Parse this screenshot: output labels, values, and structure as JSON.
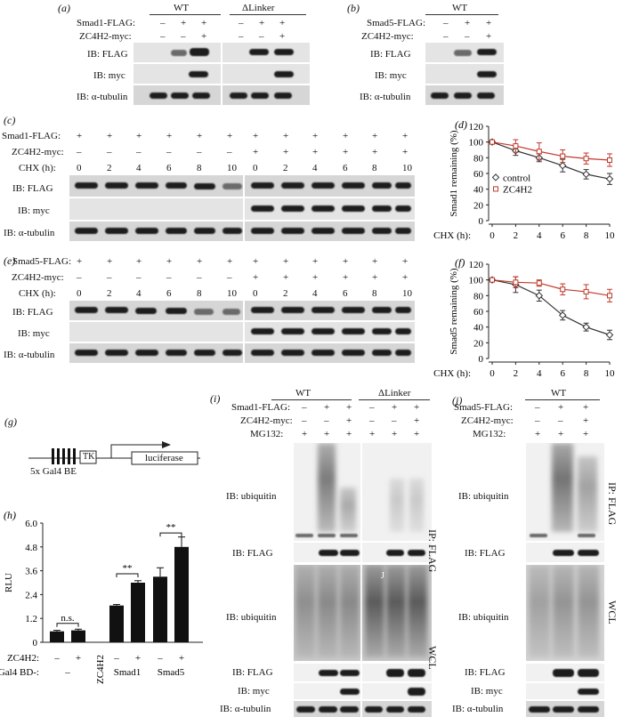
{
  "panel_a": {
    "letter": "(a)",
    "groups": [
      "WT",
      "ΔLinker"
    ],
    "rows": [
      {
        "label": "Smad1-FLAG:",
        "signs": [
          "–",
          "+",
          "+",
          "–",
          "+",
          "+"
        ]
      },
      {
        "label": "ZC4H2-myc:",
        "signs": [
          "–",
          "–",
          "+",
          "–",
          "–",
          "+"
        ]
      }
    ],
    "blots": [
      "IB: FLAG",
      "IB: myc",
      "IB: α-tubulin"
    ]
  },
  "panel_b": {
    "letter": "(b)",
    "groups": [
      "WT"
    ],
    "rows": [
      {
        "label": "Smad5-FLAG:",
        "signs": [
          "–",
          "+",
          "+"
        ]
      },
      {
        "label": "ZC4H2-myc:",
        "signs": [
          "–",
          "–",
          "+"
        ]
      }
    ],
    "blots": [
      "IB: FLAG",
      "IB: myc",
      "IB: α-tubulin"
    ]
  },
  "panel_c": {
    "letter": "(c)",
    "rows": [
      {
        "label": "Smad1-FLAG:",
        "signs": [
          "+",
          "+",
          "+",
          "+",
          "+",
          "+",
          "+",
          "+",
          "+",
          "+",
          "+",
          "+"
        ]
      },
      {
        "label": "ZC4H2-myc:",
        "signs": [
          "–",
          "–",
          "–",
          "–",
          "–",
          "–",
          "+",
          "+",
          "+",
          "+",
          "+",
          "+"
        ]
      },
      {
        "label": "CHX (h):",
        "signs": [
          "0",
          "2",
          "4",
          "6",
          "8",
          "10",
          "0",
          "2",
          "4",
          "6",
          "8",
          "10"
        ]
      }
    ],
    "blots": [
      "IB: FLAG",
      "IB: myc",
      "IB: α-tubulin"
    ]
  },
  "panel_e": {
    "letter": "(e)",
    "rows": [
      {
        "label": "Smad5-FLAG:",
        "signs": [
          "+",
          "+",
          "+",
          "+",
          "+",
          "+",
          "+",
          "+",
          "+",
          "+",
          "+",
          "+"
        ]
      },
      {
        "label": "ZC4H2-myc:",
        "signs": [
          "–",
          "–",
          "–",
          "–",
          "–",
          "–",
          "+",
          "+",
          "+",
          "+",
          "+",
          "+"
        ]
      },
      {
        "label": "CHX (h):",
        "signs": [
          "0",
          "2",
          "4",
          "6",
          "8",
          "10",
          "0",
          "2",
          "4",
          "6",
          "8",
          "10"
        ]
      }
    ],
    "blots": [
      "IB: FLAG",
      "IB: myc",
      "IB: α-tubulin"
    ]
  },
  "panel_g": {
    "letter": "(g)",
    "box1": "TK",
    "box2": "luciferase",
    "caption": "5x Gal4 BE"
  },
  "panel_i": {
    "letter": "(i)",
    "groups": [
      "WT",
      "ΔLinker"
    ],
    "rows": [
      {
        "label": "Smad1-FLAG:",
        "signs": [
          "–",
          "+",
          "+",
          "–",
          "+",
          "+"
        ]
      },
      {
        "label": "ZC4H2-myc:",
        "signs": [
          "–",
          "–",
          "+",
          "–",
          "–",
          "+"
        ]
      },
      {
        "label": "MG132:",
        "signs": [
          "+",
          "+",
          "+",
          "+",
          "+",
          "+"
        ]
      }
    ],
    "blots": [
      "IB: ubiquitin",
      "IB: FLAG",
      "IB: ubiquitin",
      "IB: FLAG",
      "IB: myc",
      "IB: α-tubulin"
    ],
    "side_ip": "IP: FLAG",
    "side_wcl": "WCL",
    "mark": "J"
  },
  "panel_j": {
    "letter": "(j)",
    "groups": [
      "WT"
    ],
    "rows": [
      {
        "label": "Smad5-FLAG:",
        "signs": [
          "–",
          "+",
          "+"
        ]
      },
      {
        "label": "ZC4H2-myc:",
        "signs": [
          "–",
          "–",
          "+"
        ]
      },
      {
        "label": "MG132:",
        "signs": [
          "+",
          "+",
          "+"
        ]
      }
    ],
    "blots": [
      "IB: ubiquitin",
      "IB: FLAG",
      "IB: ubiquitin",
      "IB: FLAG",
      "IB: myc",
      "IB: α-tubulin"
    ],
    "side_ip": "IP: FLAG",
    "side_wcl": "WCL"
  },
  "chart_data": [
    {
      "panel": "(d)",
      "type": "line",
      "ylabel": "Smad1 remaining (%)",
      "xlabel": "CHX (h):",
      "x": [
        0,
        2,
        4,
        6,
        8,
        10
      ],
      "xlim": [
        0,
        10
      ],
      "ylim": [
        0,
        120
      ],
      "yticks": [
        0,
        20,
        40,
        60,
        80,
        100,
        120
      ],
      "legend": "middle-left",
      "series": [
        {
          "name": "control",
          "values": [
            100,
            89,
            80,
            70,
            59,
            53
          ],
          "errors": [
            0,
            6,
            5,
            8,
            6,
            7
          ],
          "color": "#333333"
        },
        {
          "name": "ZC4H2",
          "values": [
            100,
            95,
            88,
            82,
            79,
            77
          ],
          "errors": [
            0,
            8,
            11,
            8,
            7,
            8
          ],
          "color": "#c0392b"
        }
      ]
    },
    {
      "panel": "(f)",
      "type": "line",
      "ylabel": "Smad5 remaining (%)",
      "xlabel": "CHX (h):",
      "x": [
        0,
        2,
        4,
        6,
        8,
        10
      ],
      "xlim": [
        0,
        10
      ],
      "ylim": [
        0,
        120
      ],
      "yticks": [
        0,
        20,
        40,
        60,
        80,
        100,
        120
      ],
      "series": [
        {
          "name": "control",
          "values": [
            100,
            94,
            80,
            55,
            40,
            30
          ],
          "errors": [
            0,
            10,
            7,
            6,
            5,
            6
          ],
          "color": "#333333"
        },
        {
          "name": "ZC4H2",
          "values": [
            100,
            97,
            96,
            88,
            85,
            80
          ],
          "errors": [
            0,
            7,
            4,
            7,
            9,
            8
          ],
          "color": "#c0392b"
        }
      ]
    },
    {
      "panel": "(h)",
      "type": "bar",
      "ylabel": "RLU",
      "ylim": [
        0,
        6.0
      ],
      "yticks": [
        "0",
        "1.2",
        "2.4",
        "3.6",
        "4.8",
        "6.0"
      ],
      "row_labels": [
        "ZC4H2:",
        "Gal4 BD-:"
      ],
      "zc4h2_signs": [
        "–",
        "+",
        "–",
        "+",
        "–",
        "+"
      ],
      "groups": [
        "–",
        "ZC4H2",
        "Smad1",
        "Smad5"
      ],
      "values": [
        0.55,
        0.6,
        0.0,
        1.85,
        3.0,
        3.3,
        4.8
      ],
      "errors": [
        0.05,
        0.06,
        0,
        0.05,
        0.1,
        0.45,
        0.5
      ],
      "significance": [
        "n.s.",
        "**",
        "**"
      ]
    }
  ]
}
